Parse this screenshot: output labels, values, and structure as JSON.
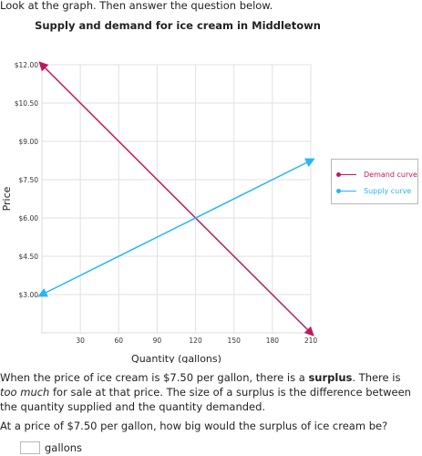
{
  "intro_text": "Look at the graph. Then answer the question below.",
  "chart_data": {
    "type": "line",
    "title": "Supply and demand for ice cream in Middletown",
    "xlabel": "Quantity (gallons)",
    "ylabel": "Price",
    "xlim": [
      0,
      210
    ],
    "ylim": [
      1.5,
      12
    ],
    "x_ticks": [
      30,
      60,
      90,
      120,
      150,
      180,
      210
    ],
    "x_tick_labels": [
      "30",
      "60",
      "90",
      "120",
      "150",
      "180",
      "210"
    ],
    "y_ticks": [
      3,
      4.5,
      6,
      7.5,
      9,
      10.5,
      12
    ],
    "y_tick_labels": [
      "$3.00",
      "$4.50",
      "$6.00",
      "$7.50",
      "$9.00",
      "$10.50",
      "$12.00"
    ],
    "grid": true,
    "legend_position": "right",
    "series": [
      {
        "name": "Demand curve",
        "color": "#c2185b",
        "x": [
          0,
          210
        ],
        "y": [
          12,
          1.5
        ]
      },
      {
        "name": "Supply curve",
        "color": "#29b6f6",
        "x": [
          0,
          210
        ],
        "y": [
          3,
          8.25
        ]
      }
    ]
  },
  "question": {
    "paragraph": {
      "part1": "When the price of ice cream is $7.50 per gallon, there is a ",
      "bold": "surplus",
      "part2": ". There is ",
      "italic": "too much",
      "part3": " for sale at that price. The size of a surplus is the difference between the quantity supplied and the quantity demanded."
    },
    "prompt": "At a price of $7.50 per gallon, how big would the surplus of ice cream be?",
    "answer_value": "",
    "answer_unit": "gallons"
  }
}
